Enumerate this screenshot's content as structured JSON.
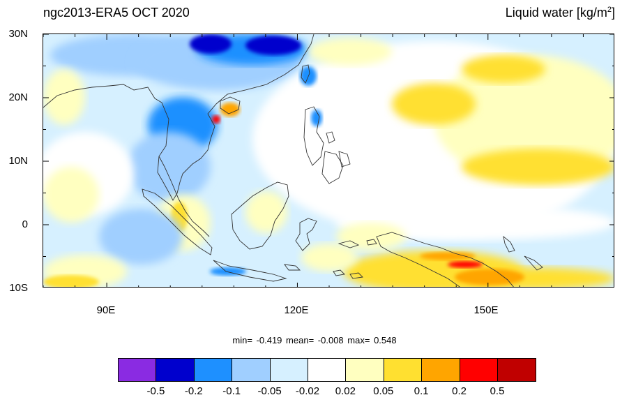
{
  "title_left": "ngc2013-ERA5 OCT 2020",
  "title_right": "Liquid water  [kg/m",
  "title_right_sup": "2",
  "title_right_close": "]",
  "lat_labels": [
    "30N",
    "20N",
    "10N",
    "0",
    "10S"
  ],
  "lon_labels": [
    "90E",
    "120E",
    "150E"
  ],
  "stats": {
    "min_label": "min=",
    "min_value": "-0.419",
    "mean_label": "mean=",
    "mean_value": "-0.008",
    "max_label": "max=",
    "max_value": "0.548"
  },
  "colorbar": {
    "colors": [
      "#8a2be2",
      "#0000cd",
      "#1e90ff",
      "#a0cfff",
      "#d6f0ff",
      "#ffffff",
      "#ffffc0",
      "#ffe030",
      "#ffa500",
      "#ff0000",
      "#c00000"
    ],
    "labels": [
      "-0.5",
      "-0.2",
      "-0.1",
      "-0.05",
      "-0.02",
      "0.02",
      "0.05",
      "0.1",
      "0.2",
      "0.5"
    ]
  },
  "map_colors": {
    "ocean_base": "#d6f0ff",
    "neutral": "#ffffff",
    "light_yellow": "#ffffc0",
    "yellow": "#ffe030",
    "orange": "#ffa500",
    "light_blue": "#a0cfff",
    "blue": "#1e90ff",
    "dark_blue": "#0000cd",
    "red": "#ff0000",
    "dark_red": "#c00000",
    "coastline": "#333333"
  }
}
